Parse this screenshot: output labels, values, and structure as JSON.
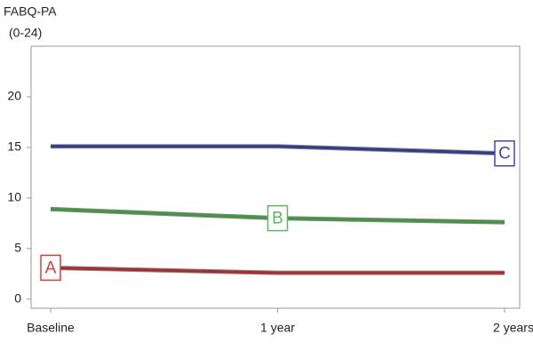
{
  "chart_data": {
    "type": "line",
    "ylabel": "FABQ-PA",
    "ylabel_sub": "(0-24)",
    "categories": [
      "Baseline",
      "1 year",
      "2 years"
    ],
    "series": [
      {
        "name": "A",
        "color": "#b02828",
        "values": [
          3.1,
          2.6,
          2.6
        ]
      },
      {
        "name": "B",
        "color": "#3c9a3c",
        "values": [
          8.9,
          8.0,
          7.6
        ]
      },
      {
        "name": "C",
        "color": "#2f3a8f",
        "values": [
          15.1,
          15.1,
          14.4
        ]
      }
    ],
    "label_colors": [
      "#e53935",
      "#5cb85c",
      "#3f4aa8"
    ],
    "ylim": [
      -0.9,
      25
    ],
    "yticks": [
      0,
      5,
      10,
      15,
      20
    ],
    "grid": false
  }
}
